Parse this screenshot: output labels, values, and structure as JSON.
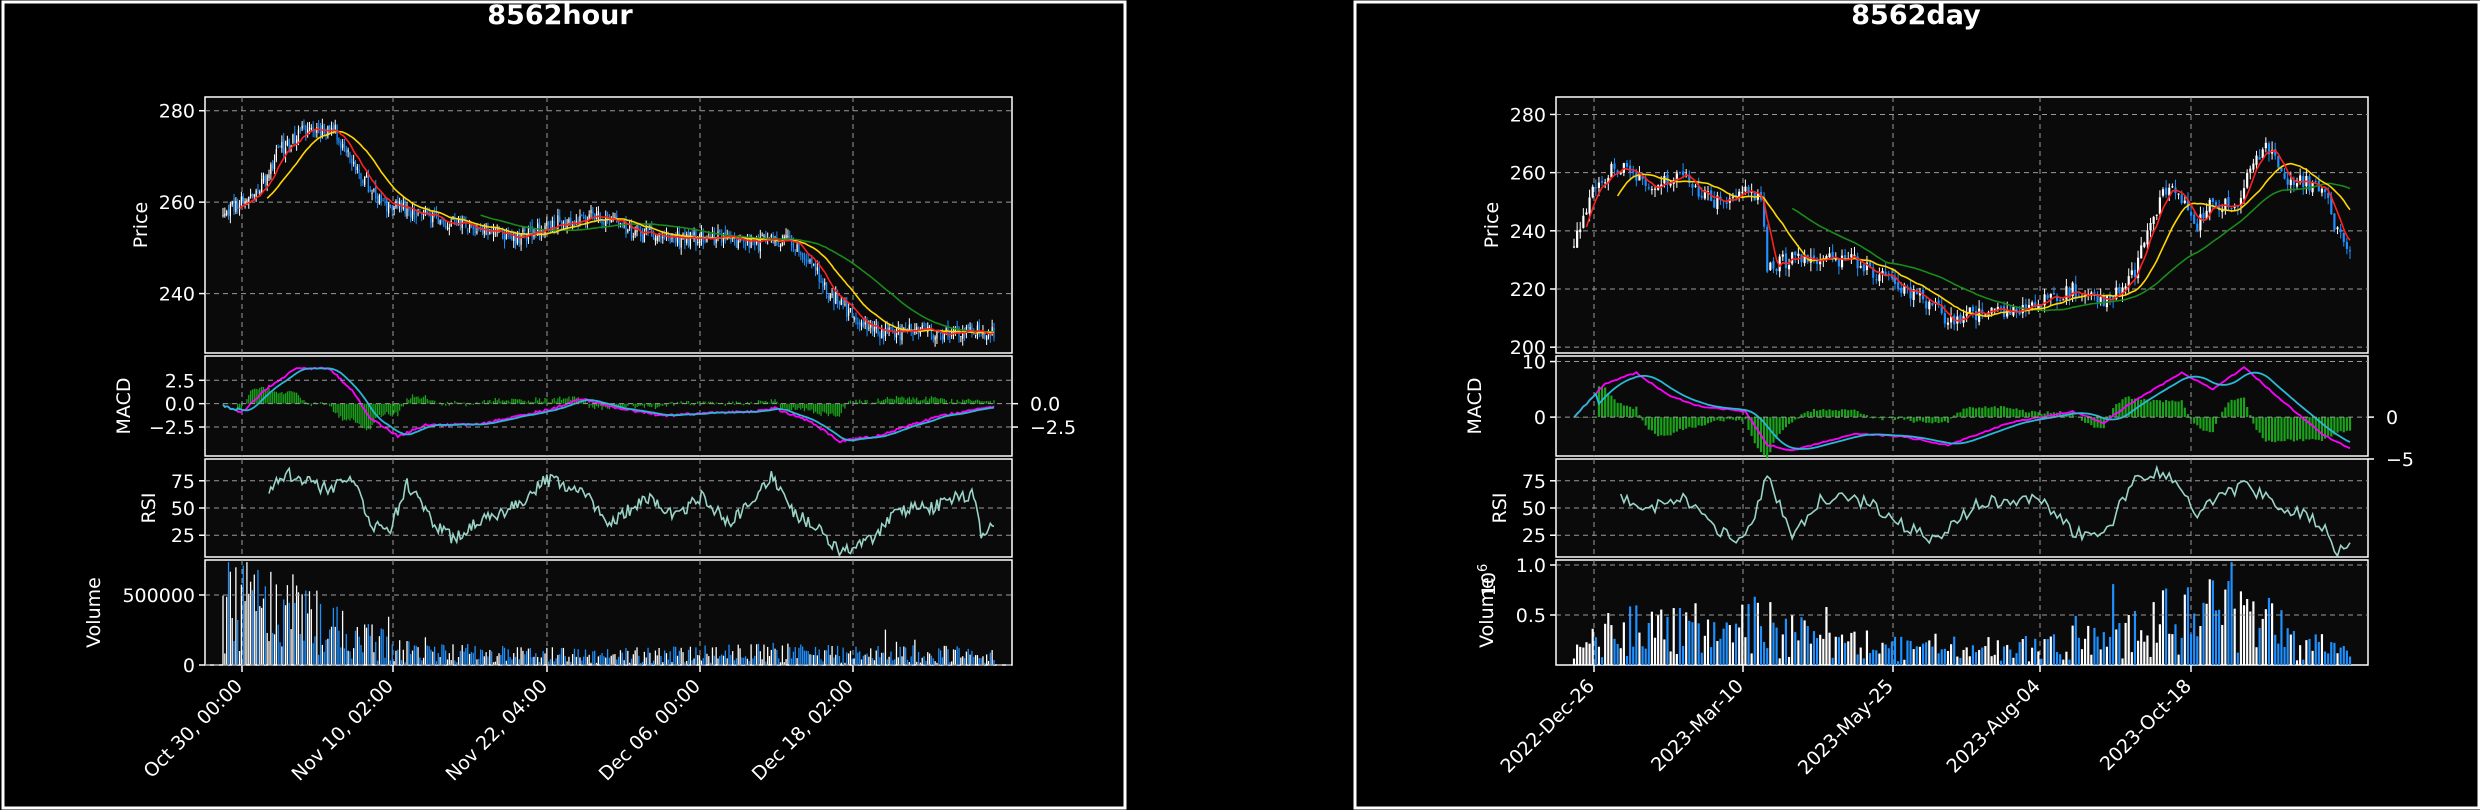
{
  "colors": {
    "background": "#000000",
    "panel_bg": "#0a0a0a",
    "frame": "#ffffff",
    "grid": "#9a9a9a",
    "text": "#ffffff",
    "candle_up": "#ffffff",
    "candle_down": "#1e90ff",
    "ma_short": "#ff2020",
    "ma_mid": "#ffd700",
    "ma_long": "#1a8a1a",
    "macd": "#ff00ff",
    "signal": "#29b8d6",
    "hist": "#1aa31a",
    "rsi": "#9ad4c8",
    "vol_up": "#ffffff",
    "vol_down": "#1e90ff"
  },
  "chart_data": [
    {
      "type": "candlestick",
      "title": "8562hour",
      "panels": {
        "price": {
          "ylabel": "Price",
          "ylim": [
            227,
            283
          ],
          "yticks": [
            240,
            260,
            280
          ]
        },
        "macd": {
          "ylabel": "MACD",
          "ylim": [
            -5.6,
            5.1
          ],
          "yticks": [
            -0.0,
            2.5
          ],
          "yticklabels": [
            "0.0",
            "2.5"
          ],
          "yticks_extra": [
            -2.5
          ],
          "yticklabels_extra": [
            "−2.5"
          ],
          "right_ticks": [
            0.0,
            -2.5
          ],
          "right_ticklabels": [
            "0.0",
            "−2.5"
          ]
        },
        "rsi": {
          "ylabel": "RSI",
          "ylim": [
            5,
            95
          ],
          "yticks": [
            25,
            50,
            75
          ]
        },
        "volume": {
          "ylabel": "Volume",
          "ylim": [
            0,
            750000
          ],
          "yticks": [
            0,
            500000
          ]
        }
      },
      "left_tick_labels": {
        "macd": [
          "2.5",
          "0.0",
          "−2.5"
        ],
        "volume": [
          "0",
          "500000"
        ]
      },
      "xlabels": [
        "Oct 30, 00:00",
        "Nov 10, 02:00",
        "Nov 22, 04:00",
        "Dec 06, 00:00",
        "Dec 18, 02:00"
      ],
      "n": 420,
      "close_anchors": [
        [
          0,
          258
        ],
        [
          18,
          262
        ],
        [
          30,
          271
        ],
        [
          45,
          276
        ],
        [
          60,
          276
        ],
        [
          72,
          268
        ],
        [
          85,
          260
        ],
        [
          110,
          257
        ],
        [
          140,
          254
        ],
        [
          160,
          252
        ],
        [
          185,
          256
        ],
        [
          205,
          257
        ],
        [
          225,
          253
        ],
        [
          250,
          252
        ],
        [
          270,
          252
        ],
        [
          290,
          251
        ],
        [
          305,
          252
        ],
        [
          315,
          249
        ],
        [
          330,
          240
        ],
        [
          345,
          234
        ],
        [
          360,
          231
        ],
        [
          380,
          232
        ],
        [
          400,
          231
        ],
        [
          419,
          232
        ]
      ],
      "rsi_anchors": [
        [
          0,
          null
        ],
        [
          25,
          68
        ],
        [
          35,
          82
        ],
        [
          55,
          68
        ],
        [
          72,
          74
        ],
        [
          80,
          35
        ],
        [
          90,
          26
        ],
        [
          100,
          72
        ],
        [
          115,
          34
        ],
        [
          125,
          22
        ],
        [
          140,
          38
        ],
        [
          160,
          52
        ],
        [
          175,
          76
        ],
        [
          195,
          68
        ],
        [
          210,
          35
        ],
        [
          230,
          60
        ],
        [
          245,
          42
        ],
        [
          260,
          60
        ],
        [
          275,
          36
        ],
        [
          290,
          58
        ],
        [
          298,
          80
        ],
        [
          310,
          45
        ],
        [
          325,
          30
        ],
        [
          335,
          10
        ],
        [
          355,
          22
        ],
        [
          365,
          48
        ],
        [
          385,
          50
        ],
        [
          395,
          58
        ],
        [
          408,
          63
        ],
        [
          412,
          25
        ],
        [
          419,
          33
        ]
      ],
      "macd_anchors": [
        [
          0,
          -0.2
        ],
        [
          10,
          -1.0
        ],
        [
          25,
          1.8
        ],
        [
          40,
          3.8
        ],
        [
          58,
          3.7
        ],
        [
          70,
          1.5
        ],
        [
          80,
          -1.5
        ],
        [
          95,
          -3.5
        ],
        [
          110,
          -2.3
        ],
        [
          140,
          -2.2
        ],
        [
          180,
          -0.5
        ],
        [
          195,
          0.5
        ],
        [
          215,
          -0.5
        ],
        [
          240,
          -1.3
        ],
        [
          265,
          -1.0
        ],
        [
          290,
          -0.8
        ],
        [
          300,
          -0.5
        ],
        [
          320,
          -2.0
        ],
        [
          335,
          -4.0
        ],
        [
          355,
          -3.5
        ],
        [
          390,
          -1.3
        ],
        [
          419,
          -0.3
        ]
      ],
      "volume_anchors": [
        [
          0,
          550000
        ],
        [
          40,
          450000
        ],
        [
          70,
          250000
        ],
        [
          100,
          120000
        ],
        [
          200,
          80000
        ],
        [
          300,
          110000
        ],
        [
          419,
          90000
        ]
      ],
      "ma_long_start": 140
    },
    {
      "type": "candlestick",
      "title": "8562day",
      "panels": {
        "price": {
          "ylabel": "Price",
          "ylim": [
            198,
            286
          ],
          "yticks": [
            200,
            220,
            240,
            260,
            280
          ]
        },
        "macd": {
          "ylabel": "MACD",
          "ylim": [
            -7,
            11
          ],
          "yticks": [
            0,
            10
          ],
          "right_ticks": [
            0,
            -5
          ],
          "right_ticklabels": [
            "0",
            "−5"
          ]
        },
        "rsi": {
          "ylabel": "RSI",
          "ylim": [
            5,
            95
          ],
          "yticks": [
            25,
            50,
            75
          ]
        },
        "volume": {
          "ylabel": "Volume",
          "ylim": [
            0,
            1.05
          ],
          "yticks": [
            0.5,
            1.0
          ],
          "multiplier": "10^6"
        }
      },
      "xlabels": [
        "2022-Dec-26",
        "2023-Mar-10",
        "2023-May-25",
        "2023-Aug-04",
        "2023-Oct-18"
      ],
      "n": 250,
      "close_anchors": [
        [
          0,
          236
        ],
        [
          8,
          258
        ],
        [
          15,
          262
        ],
        [
          25,
          256
        ],
        [
          35,
          259
        ],
        [
          45,
          250
        ],
        [
          55,
          254
        ],
        [
          60,
          250
        ],
        [
          62,
          228
        ],
        [
          75,
          231
        ],
        [
          90,
          230
        ],
        [
          100,
          224
        ],
        [
          110,
          218
        ],
        [
          120,
          210
        ],
        [
          140,
          213
        ],
        [
          150,
          216
        ],
        [
          160,
          220
        ],
        [
          170,
          215
        ],
        [
          180,
          226
        ],
        [
          185,
          243
        ],
        [
          190,
          255
        ],
        [
          195,
          250
        ],
        [
          200,
          242
        ],
        [
          205,
          250
        ],
        [
          212,
          248
        ],
        [
          218,
          262
        ],
        [
          222,
          270
        ],
        [
          228,
          258
        ],
        [
          240,
          255
        ],
        [
          245,
          240
        ],
        [
          250,
          232
        ]
      ],
      "rsi_anchors": [
        [
          0,
          null
        ],
        [
          15,
          60
        ],
        [
          25,
          50
        ],
        [
          35,
          62
        ],
        [
          45,
          30
        ],
        [
          55,
          20
        ],
        [
          62,
          80
        ],
        [
          70,
          25
        ],
        [
          80,
          60
        ],
        [
          95,
          55
        ],
        [
          105,
          35
        ],
        [
          115,
          20
        ],
        [
          130,
          55
        ],
        [
          150,
          58
        ],
        [
          160,
          28
        ],
        [
          170,
          22
        ],
        [
          180,
          80
        ],
        [
          190,
          82
        ],
        [
          200,
          45
        ],
        [
          215,
          72
        ],
        [
          225,
          55
        ],
        [
          240,
          35
        ],
        [
          245,
          10
        ],
        [
          250,
          25
        ]
      ],
      "macd_anchors": [
        [
          0,
          0
        ],
        [
          10,
          6
        ],
        [
          20,
          8
        ],
        [
          30,
          4
        ],
        [
          40,
          2
        ],
        [
          55,
          1
        ],
        [
          62,
          -5
        ],
        [
          70,
          -6
        ],
        [
          90,
          -3
        ],
        [
          105,
          -3.5
        ],
        [
          120,
          -5
        ],
        [
          140,
          -1
        ],
        [
          160,
          1
        ],
        [
          170,
          -1
        ],
        [
          180,
          3
        ],
        [
          195,
          8
        ],
        [
          205,
          5
        ],
        [
          215,
          9
        ],
        [
          225,
          4
        ],
        [
          240,
          -3
        ],
        [
          250,
          -6
        ]
      ],
      "volume_anchors": [
        [
          0,
          0.3
        ],
        [
          15,
          0.4
        ],
        [
          60,
          0.5
        ],
        [
          80,
          0.25
        ],
        [
          140,
          0.2
        ],
        [
          175,
          0.35
        ],
        [
          190,
          0.55
        ],
        [
          215,
          0.8
        ],
        [
          230,
          0.3
        ],
        [
          250,
          0.15
        ]
      ],
      "ma_long_start": 70
    }
  ]
}
